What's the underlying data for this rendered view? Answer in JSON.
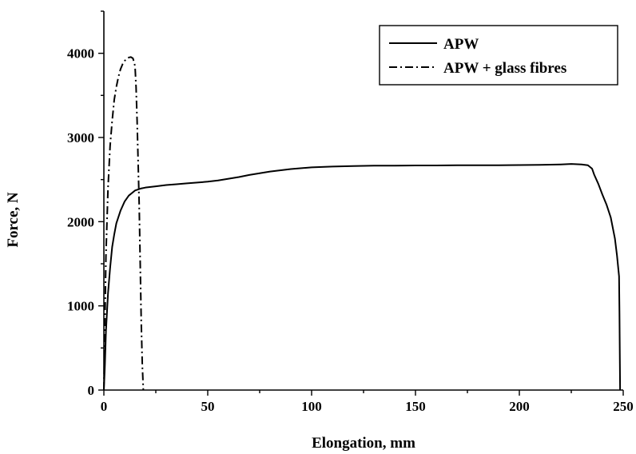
{
  "chart_data": {
    "type": "line",
    "title": "",
    "xlabel": "Elongation, mm",
    "ylabel": "Force, N",
    "xlim": [
      0,
      250
    ],
    "ylim": [
      0,
      4500
    ],
    "xticks": [
      0,
      50,
      100,
      150,
      200,
      250
    ],
    "yticks": [
      0,
      1000,
      2000,
      3000,
      4000
    ],
    "grid": false,
    "legend_position": "top-right",
    "series": [
      {
        "name": "APW",
        "line_style": "solid",
        "color": "#000000",
        "points": [
          [
            0,
            0
          ],
          [
            0.5,
            300
          ],
          [
            1,
            700
          ],
          [
            2,
            1150
          ],
          [
            3,
            1450
          ],
          [
            4,
            1700
          ],
          [
            5,
            1850
          ],
          [
            6,
            1980
          ],
          [
            8,
            2130
          ],
          [
            10,
            2240
          ],
          [
            12,
            2310
          ],
          [
            15,
            2370
          ],
          [
            18,
            2395
          ],
          [
            20,
            2405
          ],
          [
            25,
            2420
          ],
          [
            30,
            2435
          ],
          [
            35,
            2445
          ],
          [
            40,
            2455
          ],
          [
            45,
            2465
          ],
          [
            50,
            2475
          ],
          [
            55,
            2490
          ],
          [
            60,
            2510
          ],
          [
            65,
            2530
          ],
          [
            70,
            2555
          ],
          [
            75,
            2575
          ],
          [
            80,
            2595
          ],
          [
            90,
            2625
          ],
          [
            100,
            2645
          ],
          [
            110,
            2655
          ],
          [
            120,
            2660
          ],
          [
            130,
            2665
          ],
          [
            140,
            2665
          ],
          [
            150,
            2668
          ],
          [
            160,
            2668
          ],
          [
            170,
            2670
          ],
          [
            180,
            2670
          ],
          [
            190,
            2670
          ],
          [
            200,
            2672
          ],
          [
            210,
            2675
          ],
          [
            220,
            2680
          ],
          [
            225,
            2685
          ],
          [
            230,
            2680
          ],
          [
            233,
            2670
          ],
          [
            235,
            2630
          ],
          [
            236,
            2560
          ],
          [
            238,
            2450
          ],
          [
            240,
            2320
          ],
          [
            242,
            2200
          ],
          [
            244,
            2050
          ],
          [
            246,
            1800
          ],
          [
            247,
            1600
          ],
          [
            248,
            1350
          ],
          [
            248.2,
            900
          ],
          [
            248.4,
            300
          ],
          [
            248.5,
            0
          ]
        ]
      },
      {
        "name": "APW + glass fibres",
        "line_style": "dash-dot",
        "color": "#000000",
        "points": [
          [
            0,
            0
          ],
          [
            0.5,
            800
          ],
          [
            1,
            1600
          ],
          [
            2,
            2400
          ],
          [
            3,
            2900
          ],
          [
            4,
            3200
          ],
          [
            5,
            3450
          ],
          [
            6,
            3600
          ],
          [
            7,
            3720
          ],
          [
            8,
            3810
          ],
          [
            9,
            3870
          ],
          [
            10,
            3910
          ],
          [
            11,
            3935
          ],
          [
            12,
            3950
          ],
          [
            13,
            3955
          ],
          [
            14,
            3940
          ],
          [
            15,
            3850
          ],
          [
            15.5,
            3600
          ],
          [
            16,
            3200
          ],
          [
            16.5,
            2700
          ],
          [
            17,
            2200
          ],
          [
            17.5,
            1500
          ],
          [
            18,
            800
          ],
          [
            18.5,
            300
          ],
          [
            19,
            0
          ]
        ]
      }
    ]
  }
}
